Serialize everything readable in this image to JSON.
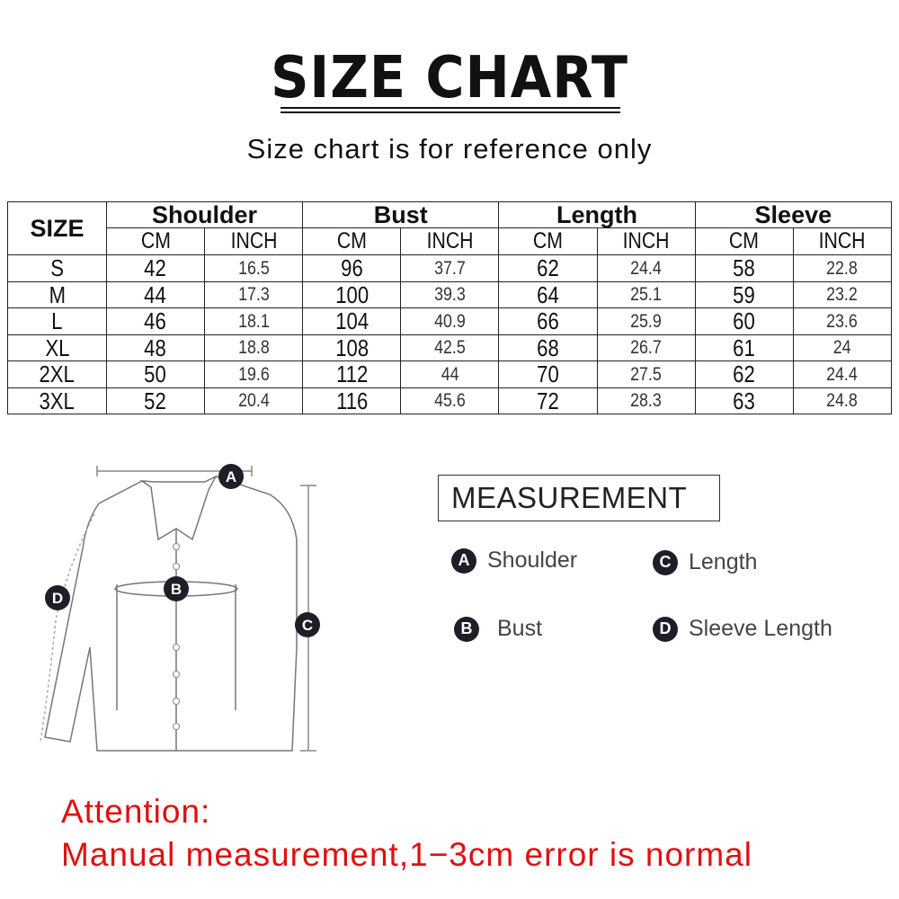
{
  "title": "SIZE CHART",
  "subtitle": "Size chart is for reference only",
  "table": {
    "size_header": "SIZE",
    "groups": [
      "Shoulder",
      "Bust",
      "Length",
      "Sleeve"
    ],
    "units": [
      "CM",
      "INCH",
      "CM",
      "INCH",
      "CM",
      "INCH",
      "CM",
      "INCH"
    ],
    "rows": [
      [
        "S",
        "42",
        "16.5",
        "96",
        "37.7",
        "62",
        "24.4",
        "58",
        "22.8"
      ],
      [
        "M",
        "44",
        "17.3",
        "100",
        "39.3",
        "64",
        "25.1",
        "59",
        "23.2"
      ],
      [
        "L",
        "46",
        "18.1",
        "104",
        "40.9",
        "66",
        "25.9",
        "60",
        "23.6"
      ],
      [
        "XL",
        "48",
        "18.8",
        "108",
        "42.5",
        "68",
        "26.7",
        "61",
        "24"
      ],
      [
        "2XL",
        "50",
        "19.6",
        "112",
        "44",
        "70",
        "27.5",
        "62",
        "24.4"
      ],
      [
        "3XL",
        "52",
        "20.4",
        "116",
        "45.6",
        "72",
        "28.3",
        "63",
        "24.8"
      ]
    ]
  },
  "diagram": {
    "markers": [
      "A",
      "B",
      "C",
      "D"
    ]
  },
  "measurement": {
    "title": "MEASUREMENT",
    "items": [
      {
        "letter": "A",
        "label": "Shoulder"
      },
      {
        "letter": "C",
        "label": "Length"
      },
      {
        "letter": "B",
        "label": "Bust"
      },
      {
        "letter": "D",
        "label": "Sleeve Length"
      }
    ]
  },
  "attention": {
    "heading": "Attention:",
    "text": "Manual measurement,1−3cm error is normal",
    "color": "#e01010"
  }
}
